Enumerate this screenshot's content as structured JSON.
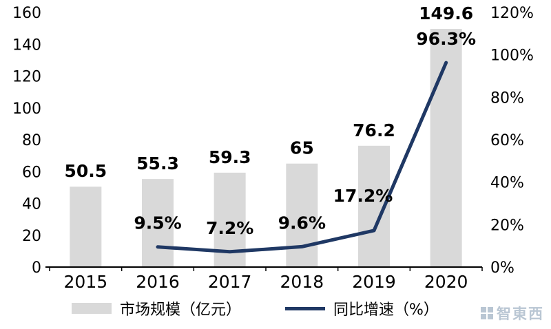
{
  "chart_data": {
    "type": "bar",
    "subtype": "combo-bar-line",
    "title": "",
    "categories": [
      "2015",
      "2016",
      "2017",
      "2018",
      "2019",
      "2020"
    ],
    "series": [
      {
        "name": "市场规模（亿元）",
        "chart_type": "bar",
        "axis": "left",
        "color": "#d9d9d9",
        "values": [
          50.5,
          55.3,
          59.3,
          65,
          76.2,
          149.6
        ],
        "labels": [
          "50.5",
          "55.3",
          "59.3",
          "65",
          "76.2",
          "149.6"
        ]
      },
      {
        "name": "同比增速（%）",
        "chart_type": "line",
        "axis": "right",
        "color": "#1f3864",
        "values": [
          null,
          9.5,
          7.2,
          9.6,
          17.2,
          96.3
        ],
        "labels": [
          null,
          "9.5%",
          "7.2%",
          "9.6%",
          "17.2%",
          "96.3%"
        ]
      }
    ],
    "left_axis": {
      "min": 0,
      "max": 160,
      "step": 20,
      "ticks": [
        "0",
        "20",
        "40",
        "60",
        "80",
        "100",
        "120",
        "140",
        "160"
      ]
    },
    "right_axis": {
      "min": 0,
      "max": 120,
      "step": 20,
      "ticks": [
        "0%",
        "20%",
        "40%",
        "60%",
        "80%",
        "100%",
        "120%"
      ]
    },
    "grid": "off",
    "legend_position": "bottom",
    "legend": [
      {
        "label": "市场规模（亿元）",
        "marker": "bar"
      },
      {
        "label": "同比增速（%）",
        "marker": "line"
      }
    ],
    "watermark": {
      "text": "智東西"
    }
  }
}
